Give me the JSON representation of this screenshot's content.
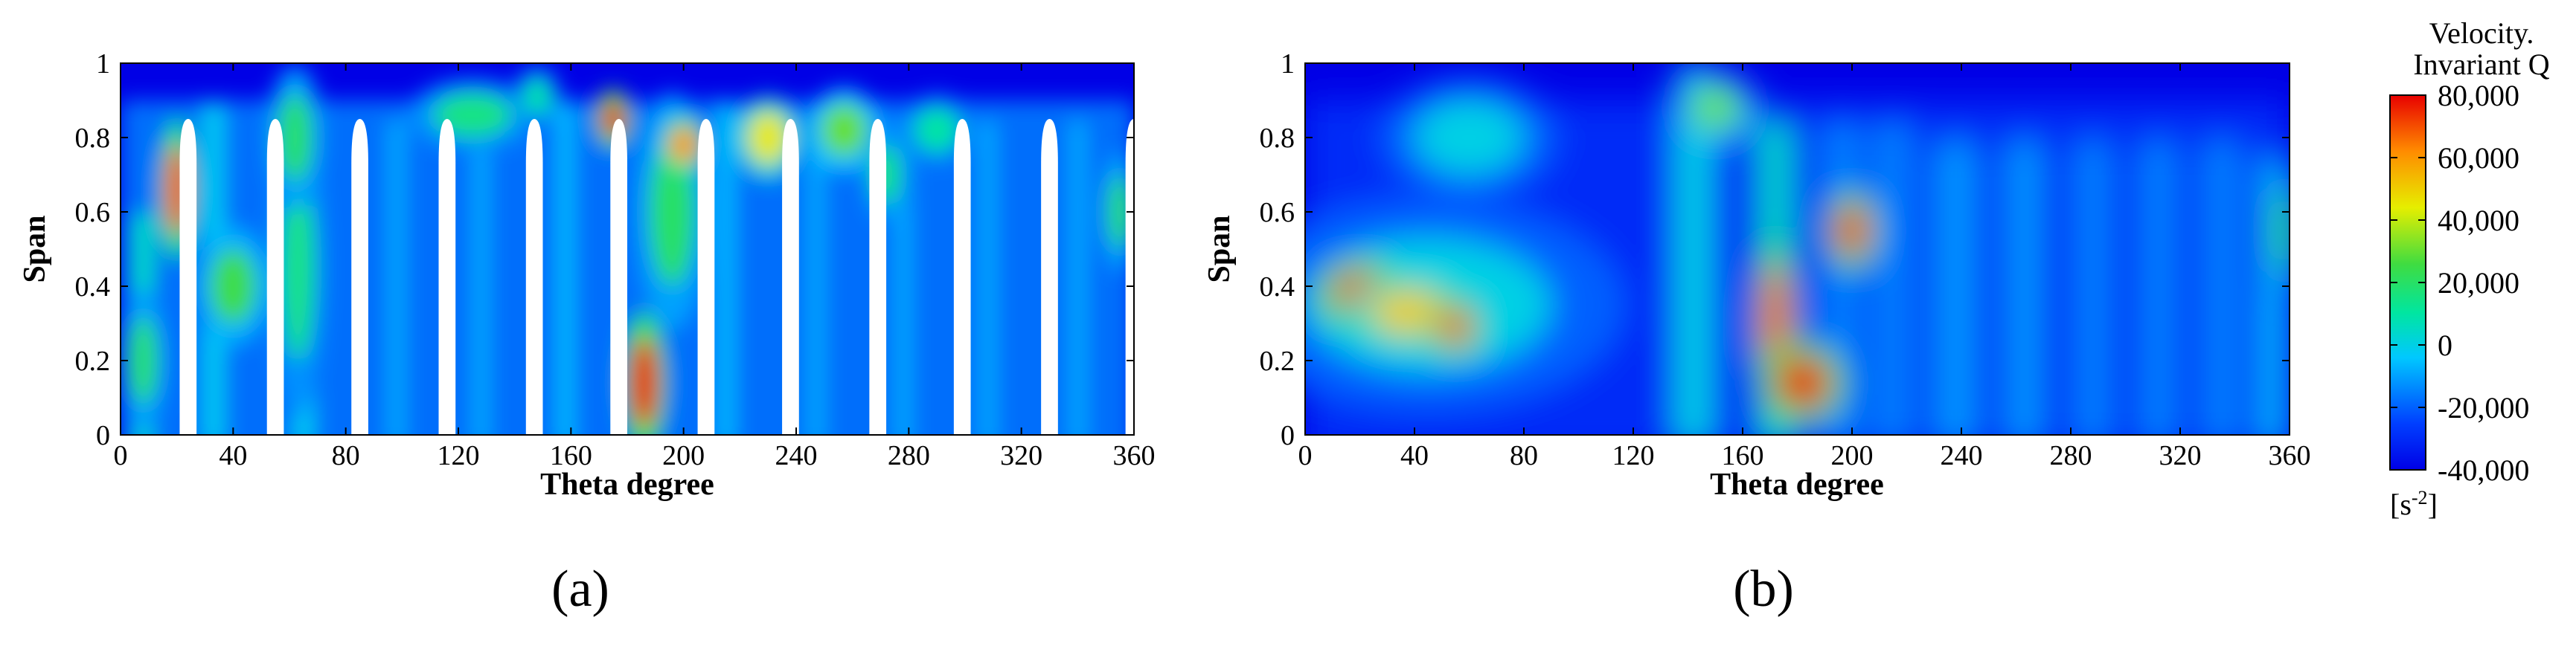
{
  "chart_data": [
    {
      "type": "heatmap",
      "panel_label": "(a)",
      "xlabel": "Theta degree",
      "ylabel": "Span",
      "xlim": [
        0,
        360
      ],
      "ylim": [
        0,
        1
      ],
      "xticks": [
        "0",
        "40",
        "80",
        "120",
        "160",
        "200",
        "240",
        "280",
        "320",
        "360"
      ],
      "yticks": [
        "0",
        "0.2",
        "0.4",
        "0.6",
        "0.8",
        "1"
      ],
      "colormap": "jet",
      "background_value": -40000,
      "field_value": -15000,
      "streaks": [
        {
          "x": 8,
          "half_width": 4,
          "bottom": 0,
          "top": 0.6,
          "value": 5000
        },
        {
          "x": 33,
          "half_width": 4,
          "bottom": 0,
          "top": 0.9,
          "value": -2000
        },
        {
          "x": 65,
          "half_width": 4,
          "bottom": 0,
          "top": 0.95,
          "value": -2000
        },
        {
          "x": 98,
          "half_width": 3,
          "bottom": 0,
          "top": 0.85,
          "value": -8000
        },
        {
          "x": 128,
          "half_width": 3,
          "bottom": 0,
          "top": 0.85,
          "value": -8000
        },
        {
          "x": 158,
          "half_width": 3,
          "bottom": 0,
          "top": 0.9,
          "value": -5000
        },
        {
          "x": 215,
          "half_width": 3,
          "bottom": 0,
          "top": 0.9,
          "value": -5000
        },
        {
          "x": 247,
          "half_width": 3,
          "bottom": 0,
          "top": 0.85,
          "value": -8000
        },
        {
          "x": 278,
          "half_width": 3,
          "bottom": 0,
          "top": 0.85,
          "value": -8000
        },
        {
          "x": 308,
          "half_width": 3,
          "bottom": 0,
          "top": 0.85,
          "value": -8000
        },
        {
          "x": 340,
          "half_width": 3,
          "bottom": 0,
          "top": 0.85,
          "value": -8000
        }
      ],
      "hotspots": [
        {
          "x": 20,
          "y": 0.66,
          "rx": 4,
          "ry": 0.12,
          "value": 70000
        },
        {
          "x": 40,
          "y": 0.4,
          "rx": 8,
          "ry": 0.1,
          "value": 25000
        },
        {
          "x": 63,
          "y": 0.45,
          "rx": 6,
          "ry": 0.25,
          "value": 15000
        },
        {
          "x": 62,
          "y": 0.8,
          "rx": 6,
          "ry": 0.12,
          "value": 20000
        },
        {
          "x": 8,
          "y": 0.2,
          "rx": 5,
          "ry": 0.12,
          "value": 20000
        },
        {
          "x": 125,
          "y": 0.86,
          "rx": 14,
          "ry": 0.06,
          "value": 15000
        },
        {
          "x": 148,
          "y": 0.91,
          "rx": 5,
          "ry": 0.05,
          "value": 10000
        },
        {
          "x": 175,
          "y": 0.85,
          "rx": 4,
          "ry": 0.05,
          "value": 80000
        },
        {
          "x": 186,
          "y": 0.14,
          "rx": 5,
          "ry": 0.12,
          "value": 80000
        },
        {
          "x": 196,
          "y": 0.6,
          "rx": 8,
          "ry": 0.2,
          "value": 20000
        },
        {
          "x": 200,
          "y": 0.78,
          "rx": 5,
          "ry": 0.05,
          "value": 60000
        },
        {
          "x": 230,
          "y": 0.8,
          "rx": 7,
          "ry": 0.07,
          "value": 45000
        },
        {
          "x": 257,
          "y": 0.82,
          "rx": 8,
          "ry": 0.07,
          "value": 30000
        },
        {
          "x": 272,
          "y": 0.7,
          "rx": 5,
          "ry": 0.08,
          "value": 15000
        },
        {
          "x": 290,
          "y": 0.82,
          "rx": 8,
          "ry": 0.06,
          "value": 10000
        },
        {
          "x": 355,
          "y": 0.6,
          "rx": 4,
          "ry": 0.1,
          "value": 20000
        }
      ],
      "blades": [
        {
          "x": 24,
          "half_width": 3,
          "top": 0.85
        },
        {
          "x": 55,
          "half_width": 3,
          "top": 0.85
        },
        {
          "x": 85,
          "half_width": 3,
          "top": 0.85
        },
        {
          "x": 116,
          "half_width": 3,
          "top": 0.85
        },
        {
          "x": 147,
          "half_width": 3,
          "top": 0.85
        },
        {
          "x": 177,
          "half_width": 3,
          "top": 0.85
        },
        {
          "x": 208,
          "half_width": 3,
          "top": 0.85
        },
        {
          "x": 238,
          "half_width": 3,
          "top": 0.85
        },
        {
          "x": 269,
          "half_width": 3,
          "top": 0.85
        },
        {
          "x": 299,
          "half_width": 3,
          "top": 0.85
        },
        {
          "x": 330,
          "half_width": 3,
          "top": 0.85
        },
        {
          "x": 360,
          "half_width": 3,
          "top": 0.85
        }
      ]
    },
    {
      "type": "heatmap",
      "panel_label": "(b)",
      "xlabel": "Theta degree",
      "ylabel": "Span",
      "xlim": [
        0,
        360
      ],
      "ylim": [
        0,
        1
      ],
      "xticks": [
        "0",
        "40",
        "80",
        "120",
        "160",
        "200",
        "240",
        "280",
        "320",
        "360"
      ],
      "yticks": [
        "0",
        "0.2",
        "0.4",
        "0.6",
        "0.8",
        "1"
      ],
      "colormap": "jet",
      "background_value": -40000,
      "field_value": -28000,
      "streaks": [
        {
          "x": 142,
          "half_width": 7,
          "bottom": 0,
          "top": 1,
          "value": 0
        },
        {
          "x": 172,
          "half_width": 6,
          "bottom": 0,
          "top": 0.85,
          "value": 5000
        },
        {
          "x": 196,
          "half_width": 7,
          "bottom": 0,
          "top": 0.85,
          "value": -15000
        },
        {
          "x": 215,
          "half_width": 7,
          "bottom": 0,
          "top": 0.85,
          "value": -15000
        },
        {
          "x": 238,
          "half_width": 8,
          "bottom": 0,
          "top": 0.8,
          "value": -12000
        },
        {
          "x": 263,
          "half_width": 7,
          "bottom": 0,
          "top": 0.8,
          "value": -12000
        },
        {
          "x": 288,
          "half_width": 7,
          "bottom": 0,
          "top": 0.8,
          "value": -15000
        },
        {
          "x": 312,
          "half_width": 7,
          "bottom": 0,
          "top": 0.8,
          "value": -15000
        },
        {
          "x": 335,
          "half_width": 7,
          "bottom": 0,
          "top": 0.8,
          "value": -15000
        },
        {
          "x": 355,
          "half_width": 5,
          "bottom": 0,
          "top": 0.75,
          "value": -5000
        }
      ],
      "hotspots": [
        {
          "x": 45,
          "y": 0.35,
          "rx": 45,
          "ry": 0.18,
          "value": 0
        },
        {
          "x": 60,
          "y": 0.8,
          "rx": 20,
          "ry": 0.1,
          "value": 0
        },
        {
          "x": 20,
          "y": 0.38,
          "rx": 10,
          "ry": 0.06,
          "value": 75000
        },
        {
          "x": 38,
          "y": 0.33,
          "rx": 14,
          "ry": 0.06,
          "value": 50000
        },
        {
          "x": 55,
          "y": 0.29,
          "rx": 6,
          "ry": 0.05,
          "value": 70000
        },
        {
          "x": 150,
          "y": 0.88,
          "rx": 9,
          "ry": 0.06,
          "value": 30000
        },
        {
          "x": 172,
          "y": 0.3,
          "rx": 5,
          "ry": 0.16,
          "value": 70000
        },
        {
          "x": 182,
          "y": 0.14,
          "rx": 10,
          "ry": 0.07,
          "value": 80000
        },
        {
          "x": 200,
          "y": 0.55,
          "rx": 6,
          "ry": 0.07,
          "value": 75000
        },
        {
          "x": 358,
          "y": 0.55,
          "rx": 4,
          "ry": 0.12,
          "value": 20000
        }
      ],
      "blades": []
    }
  ],
  "colorbar": {
    "title_line1": "Velocity.",
    "title_line2": "Invariant Q",
    "ticks": [
      "80,000",
      "60,000",
      "40,000",
      "20,000",
      "0",
      "-20,000",
      "-40,000"
    ],
    "tick_values": [
      80000,
      60000,
      40000,
      20000,
      0,
      -20000,
      -40000
    ],
    "min": -40000,
    "max": 80000,
    "unit_base": "[s",
    "unit_sup": "-2",
    "unit_end": "]"
  }
}
